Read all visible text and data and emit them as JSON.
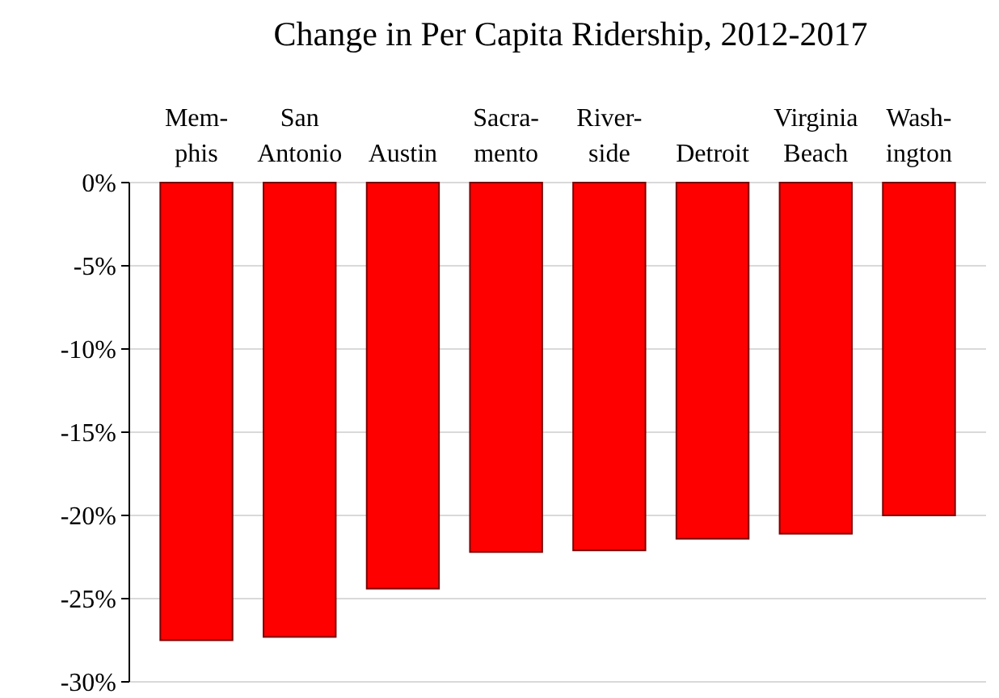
{
  "chart_data": {
    "type": "bar",
    "title": "Change in Per Capita Ridership, 2012-2017",
    "categories": [
      "Mem-\nphis",
      "San\nAntonio",
      "Austin",
      "Sacra-\nmento",
      "River-\nside",
      "Detroit",
      "Virginia\nBeach",
      "Wash-\nington"
    ],
    "values": [
      -27.5,
      -27.3,
      -24.4,
      -22.2,
      -22.1,
      -21.4,
      -21.1,
      -20.0
    ],
    "color": "#ff0000",
    "ylim": [
      -30,
      0
    ],
    "yticks": [
      {
        "value": 0,
        "label": "0%"
      },
      {
        "value": -5,
        "label": "-5%"
      },
      {
        "value": -10,
        "label": "-10%"
      },
      {
        "value": -15,
        "label": "-15%"
      },
      {
        "value": -20,
        "label": "-20%"
      },
      {
        "value": -25,
        "label": "-25%"
      },
      {
        "value": -30,
        "label": "-30%"
      }
    ],
    "grid": "y"
  }
}
